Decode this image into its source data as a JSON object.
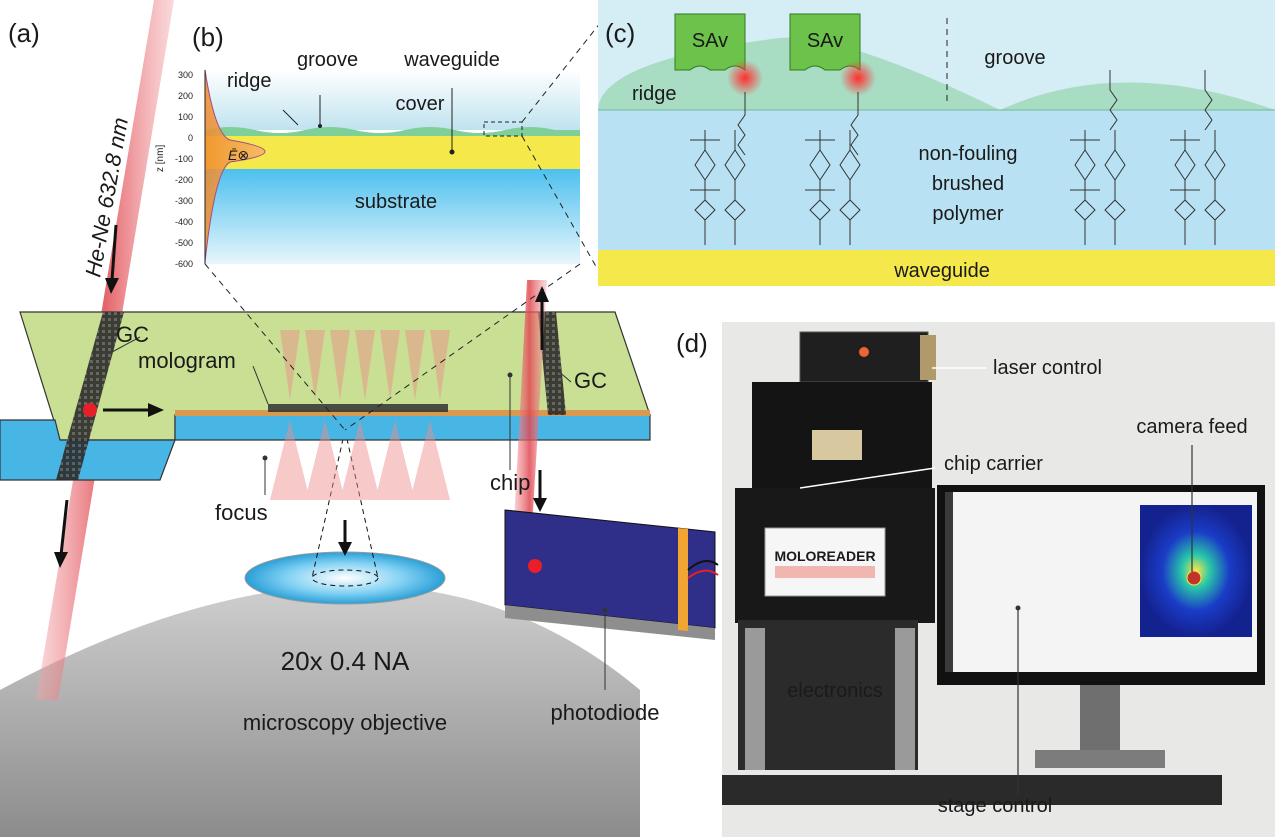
{
  "panel_a": {
    "letter": "(a)",
    "laser_label": "He-Ne 632.8 nm",
    "gc_left": "GC",
    "gc_right": "GC",
    "mologram": "mologram",
    "chip": "chip",
    "focus": "focus",
    "objective_spec": "20x 0.4 NA",
    "objective_name": "microscopy objective",
    "photodiode": "photodiode"
  },
  "panel_b": {
    "letter": "(b)",
    "ridge": "ridge",
    "groove": "groove",
    "waveguide": "waveguide",
    "cover": "cover",
    "substrate": "substrate",
    "field_symbol": "Ē⊗",
    "axis_label": "z [nm]",
    "ticks": [
      "300",
      "200",
      "100",
      "0",
      "-100",
      "-200",
      "-300",
      "-400",
      "-500",
      "-600"
    ]
  },
  "panel_c": {
    "letter": "(c)",
    "sav_1": "SAv",
    "sav_2": "SAv",
    "ridge": "ridge",
    "groove": "groove",
    "polymer_line1": "non-fouling",
    "polymer_line2": "brushed",
    "polymer_line3": "polymer",
    "waveguide": "waveguide"
  },
  "panel_d": {
    "letter": "(d)",
    "laser_control": "laser control",
    "camera_feed": "camera feed",
    "chip_carrier": "chip carrier",
    "device_name": "MOLOREADER",
    "electronics": "electronics",
    "stage_control": "stage control"
  },
  "colors": {
    "cover": "#bfe3ef",
    "waveguide": "#f4e84a",
    "substrate": "#4cc0ee",
    "ridge_green": "#9fd9b8",
    "chip_top": "#c9df93",
    "chip_side": "#48b6e4",
    "laser": "#e8636a",
    "field": "#f0953b",
    "photodiode": "#2f2f8a"
  }
}
